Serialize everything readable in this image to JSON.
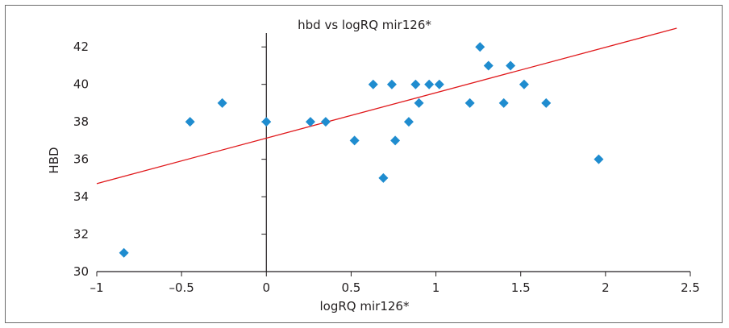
{
  "chart_data": {
    "type": "scatter",
    "title": "hbd vs logRQ mir126*",
    "xlabel": "logRQ mir126*",
    "ylabel": "HBD",
    "xlim": [
      -1,
      2.5
    ],
    "ylim": [
      30,
      43
    ],
    "x_ticks": [
      -1,
      -0.5,
      0,
      0.5,
      1,
      1.5,
      2,
      2.5
    ],
    "x_tick_labels": [
      "–1",
      "–0.5",
      "0",
      "0.5",
      "1",
      "1.5",
      "2",
      "2.5"
    ],
    "y_ticks": [
      30,
      32,
      34,
      36,
      38,
      40,
      42
    ],
    "y_tick_labels": [
      "30",
      "32",
      "34",
      "36",
      "38",
      "40",
      "42"
    ],
    "grid": false,
    "colors": {
      "points": "#1f8ccf",
      "trendline": "#e0181b",
      "axes": "#231f20"
    },
    "series": [
      {
        "marker": "diamond",
        "x": [
          -0.84,
          -0.45,
          -0.26,
          0.0,
          0.26,
          0.35,
          0.52,
          0.63,
          0.69,
          0.74,
          0.76,
          0.84,
          0.88,
          0.9,
          0.96,
          1.02,
          1.2,
          1.26,
          1.31,
          1.4,
          1.44,
          1.52,
          1.65,
          1.96
        ],
        "y": [
          31,
          38,
          39,
          38,
          38,
          38,
          37,
          40,
          35,
          40,
          37,
          38,
          40,
          39,
          40,
          40,
          39,
          42,
          41,
          39,
          41,
          40,
          39,
          36
        ]
      }
    ],
    "trendline": {
      "x": [
        -1.0,
        2.42
      ],
      "y": [
        34.7,
        43.0
      ]
    }
  }
}
